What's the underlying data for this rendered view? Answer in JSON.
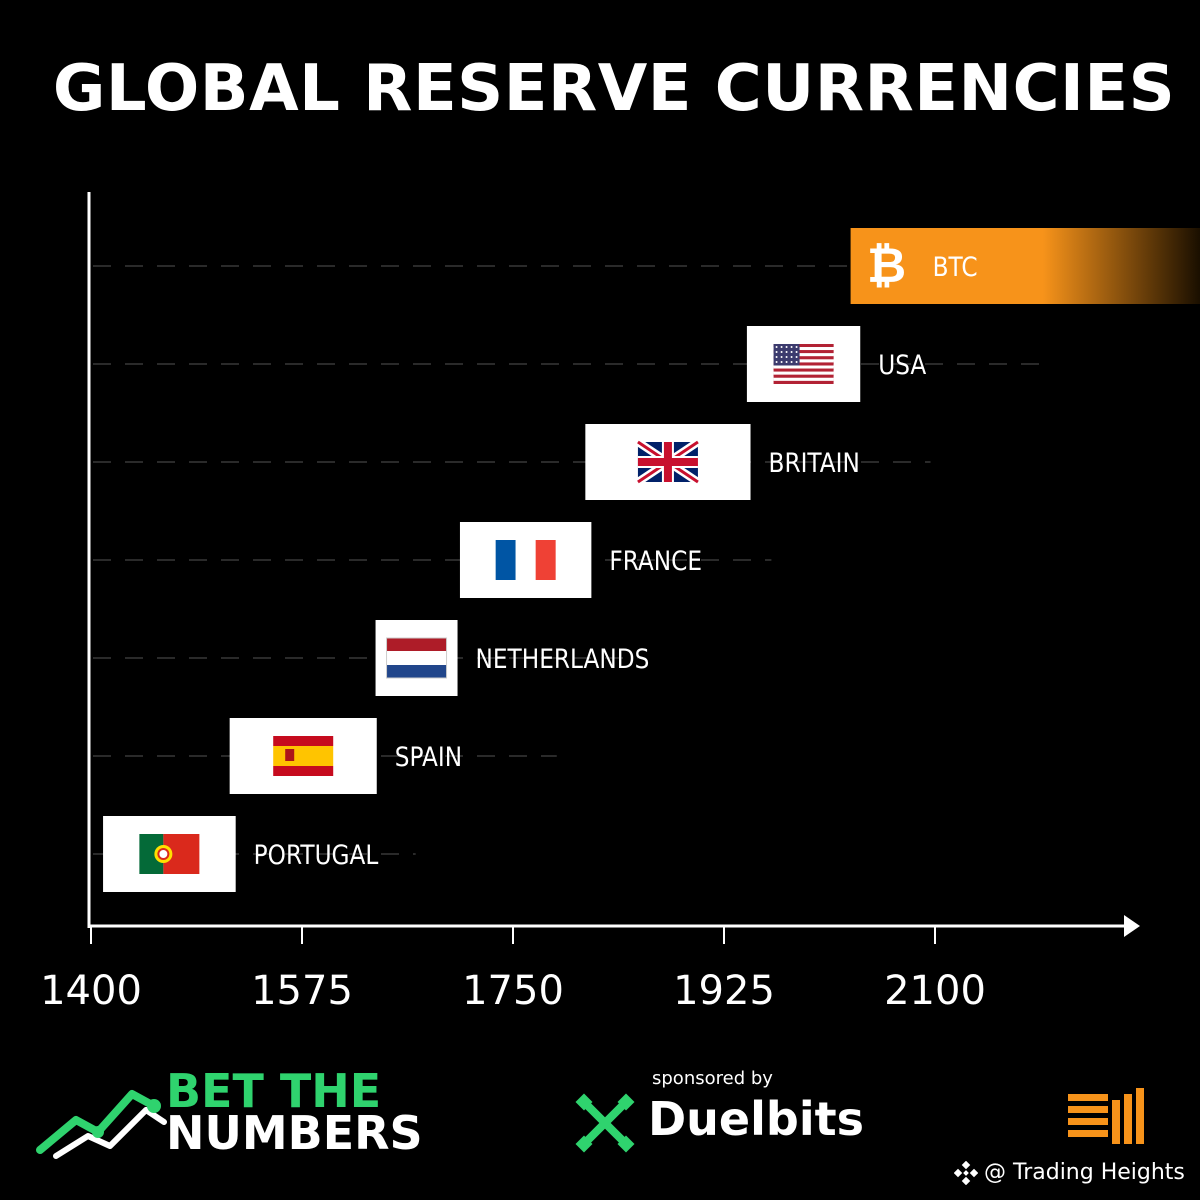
{
  "title": "GLOBAL RESERVE CURRENCIES",
  "chart_data": {
    "type": "bar",
    "orientation": "horizontal",
    "title": "GLOBAL RESERVE CURRENCIES",
    "xlabel": "",
    "ylabel": "",
    "x_ticks": [
      1400,
      1575,
      1750,
      1925,
      2100
    ],
    "xlim": [
      1400,
      2300
    ],
    "grid": "dashed horizontal",
    "legend": "none",
    "series": [
      {
        "label": "PORTUGAL",
        "flag": "portugal-flag",
        "start": 1410,
        "end": 1520
      },
      {
        "label": "SPAIN",
        "flag": "spain-flag",
        "start": 1515,
        "end": 1637
      },
      {
        "label": "NETHERLANDS",
        "flag": "netherlands-flag",
        "start": 1636,
        "end": 1704
      },
      {
        "label": "FRANCE",
        "flag": "france-flag",
        "start": 1706,
        "end": 1815
      },
      {
        "label": "BRITAIN",
        "flag": "britain-flag",
        "start": 1810,
        "end": 1947
      },
      {
        "label": "USA",
        "flag": "usa-flag",
        "start": 1944,
        "end": 2038
      },
      {
        "label": "BTC",
        "flag": "bitcoin-icon",
        "start": 2030,
        "end": 2325
      }
    ],
    "colors": {
      "axis": "#ffffff",
      "bar_default": "#ffffff",
      "btc": "#f7931a",
      "grid": "#2a2a2a"
    }
  },
  "footer": {
    "logo_line1": "BET THE",
    "logo_line2": "NUMBERS",
    "sponsor_label": "sponsored by",
    "sponsor_name": "Duelbits",
    "watermark": "@ Trading Heights"
  },
  "colors": {
    "background": "#000000",
    "accent_green": "#2fd36e",
    "accent_orange": "#f7931a"
  }
}
